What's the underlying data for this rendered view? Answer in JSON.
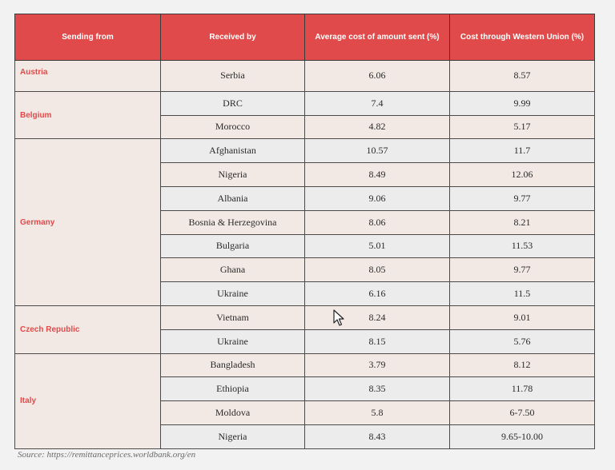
{
  "table": {
    "headers": [
      "Sending from",
      "Received by",
      "Average cost of amount sent (%)",
      "Cost through Western Union (%)"
    ],
    "groups": [
      {
        "country": "Austria",
        "rows": [
          {
            "received": "Serbia",
            "avg": "6.06",
            "wu": "8.57"
          }
        ]
      },
      {
        "country": "Belgium",
        "rows": [
          {
            "received": "DRC",
            "avg": "7.4",
            "wu": "9.99"
          },
          {
            "received": "Morocco",
            "avg": "4.82",
            "wu": "5.17"
          }
        ]
      },
      {
        "country": "Germany",
        "rows": [
          {
            "received": "Afghanistan",
            "avg": "10.57",
            "wu": "11.7"
          },
          {
            "received": "Nigeria",
            "avg": "8.49",
            "wu": "12.06"
          },
          {
            "received": "Albania",
            "avg": "9.06",
            "wu": "9.77"
          },
          {
            "received": "Bosnia & Herzegovina",
            "avg": "8.06",
            "wu": "8.21"
          },
          {
            "received": "Bulgaria",
            "avg": "5.01",
            "wu": "11.53"
          },
          {
            "received": "Ghana",
            "avg": "8.05",
            "wu": "9.77"
          },
          {
            "received": "Ukraine",
            "avg": "6.16",
            "wu": "11.5"
          }
        ]
      },
      {
        "country": "Czech Republic",
        "rows": [
          {
            "received": "Vietnam",
            "avg": "8.24",
            "wu": "9.01"
          },
          {
            "received": "Ukraine",
            "avg": "8.15",
            "wu": "5.76"
          }
        ]
      },
      {
        "country": "Italy",
        "rows": [
          {
            "received": "Bangladesh",
            "avg": "3.79",
            "wu": "8.12"
          },
          {
            "received": "Ethiopia",
            "avg": "8.35",
            "wu": "11.78"
          },
          {
            "received": "Moldova",
            "avg": "5.8",
            "wu": "6-7.50"
          },
          {
            "received": "Nigeria",
            "avg": "8.43",
            "wu": "9.65-10.00"
          }
        ]
      }
    ]
  },
  "source": "Source: https://remittanceprices.worldbank.org/en",
  "colors": {
    "header_bg": "#e04a4a",
    "country_text": "#e04a4a",
    "cell_bg": "#f3e9e4",
    "alt_bg": "#ececec"
  },
  "icons": {
    "cursor": "arrow-cursor-icon"
  }
}
